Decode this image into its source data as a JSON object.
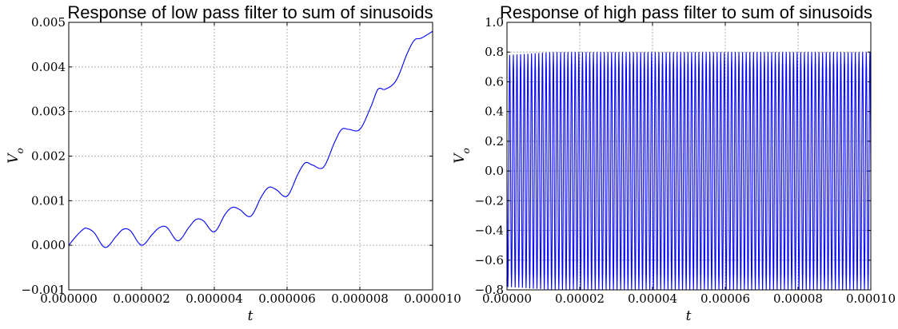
{
  "chart_data": [
    {
      "type": "line",
      "title": "Response of low pass filter to sum of sinusoids",
      "xlabel": "t",
      "ylabel": "V_o",
      "xlim": [
        0,
        1e-05
      ],
      "ylim": [
        -0.001,
        0.005
      ],
      "grid": true,
      "x_ticks": [
        "0.000000",
        "0.000002",
        "0.000004",
        "0.000006",
        "0.000008",
        "0.000010"
      ],
      "y_ticks": [
        "−0.001",
        "0.000",
        "0.001",
        "0.002",
        "0.003",
        "0.004",
        "0.005"
      ],
      "series": [
        {
          "color": "#0000ff",
          "x": [
            0,
            2e-07,
            4e-07,
            5e-07,
            7e-07,
            1e-06,
            1.3e-06,
            1.5e-06,
            1.7e-06,
            2e-06,
            2.3e-06,
            2.5e-06,
            2.7e-06,
            3e-06,
            3.3e-06,
            3.5e-06,
            3.7e-06,
            4e-06,
            4.3e-06,
            4.5e-06,
            4.7e-06,
            5e-06,
            5.3e-06,
            5.5e-06,
            5.7e-06,
            6e-06,
            6.3e-06,
            6.5e-06,
            6.7e-06,
            7e-06,
            7.3e-06,
            7.5e-06,
            7.7e-06,
            8e-06,
            8.3e-06,
            8.5e-06,
            8.7e-06,
            9e-06,
            9.3e-06,
            9.5e-06,
            9.7e-06,
            1e-05
          ],
          "y": [
            0.0,
            0.0002,
            0.00036,
            0.00038,
            0.00028,
            -5e-05,
            0.0002,
            0.00036,
            0.00032,
            0.0,
            0.00025,
            0.0004,
            0.0004,
            0.0001,
            0.0004,
            0.00058,
            0.00055,
            0.0003,
            0.0007,
            0.00085,
            0.0008,
            0.00065,
            0.0011,
            0.0013,
            0.00125,
            0.0011,
            0.0016,
            0.00185,
            0.0018,
            0.00175,
            0.0023,
            0.0026,
            0.0026,
            0.0026,
            0.0031,
            0.0035,
            0.0035,
            0.0037,
            0.0043,
            0.0046,
            0.00465,
            0.0048
          ]
        }
      ]
    },
    {
      "type": "line",
      "title": "Response of high pass filter to sum of sinusoids",
      "xlabel": "t",
      "ylabel": "V_o",
      "xlim": [
        0,
        0.0001
      ],
      "ylim": [
        -0.8,
        1.0
      ],
      "grid": true,
      "x_ticks": [
        "0.00000",
        "0.00002",
        "0.00004",
        "0.00006",
        "0.00008",
        "0.00010"
      ],
      "y_ticks": [
        "−0.8",
        "−0.6",
        "−0.4",
        "−0.2",
        "0.0",
        "0.2",
        "0.4",
        "0.6",
        "0.8",
        "1.0"
      ],
      "series": [
        {
          "color": "#0000ff",
          "oscillation": {
            "cycles": 100,
            "amplitude": 0.8,
            "offset": 0.0,
            "initial_amplitude": 0.78
          }
        }
      ]
    }
  ]
}
